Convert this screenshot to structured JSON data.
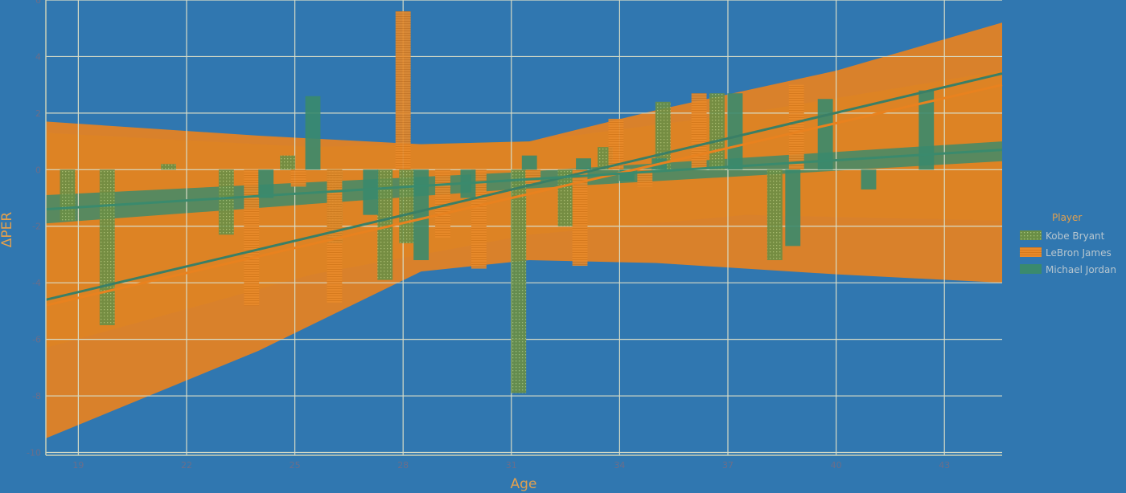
{
  "chart_data": {
    "type": "bar",
    "xlabel": "Age",
    "ylabel": "ΔPER",
    "xlim": [
      18.1,
      44.6
    ],
    "ylim": [
      -10.1,
      6
    ],
    "x_ticks": [
      19,
      22,
      25,
      28,
      31,
      34,
      37,
      40,
      43
    ],
    "y_ticks": [
      6,
      4,
      2,
      0,
      -2,
      -4,
      -6,
      -8,
      -10
    ],
    "grid": true,
    "legend": {
      "title": "Player",
      "placement": "right"
    },
    "series": [
      {
        "name": "Kobe Bryant",
        "color": "#6a8e45",
        "bars": [
          {
            "x": 18.7,
            "y": -1.8
          },
          {
            "x": 19.8,
            "y": -5.5
          },
          {
            "x": 21.5,
            "y": 0.2
          },
          {
            "x": 23.1,
            "y": -2.3
          },
          {
            "x": 24.8,
            "y": 0.5
          },
          {
            "x": 26.1,
            "y": -2.6
          },
          {
            "x": 27.5,
            "y": -3.9
          },
          {
            "x": 28.1,
            "y": -2.6
          },
          {
            "x": 31.2,
            "y": -7.9
          },
          {
            "x": 32.5,
            "y": -2.0
          },
          {
            "x": 33.6,
            "y": 0.8
          },
          {
            "x": 35.2,
            "y": 2.4
          },
          {
            "x": 36.7,
            "y": 2.7
          },
          {
            "x": 38.3,
            "y": -3.2
          }
        ],
        "trend": [
          {
            "x": 18.1,
            "y": -4.6
          },
          {
            "x": 44.6,
            "y": 3.4
          }
        ],
        "band": {
          "upper": [
            {
              "x": 18.1,
              "y": 1.3
            },
            {
              "x": 25.5,
              "y": 0.8
            },
            {
              "x": 31.5,
              "y": 1.0
            },
            {
              "x": 37.5,
              "y": 2.0
            },
            {
              "x": 44.6,
              "y": 3.5
            }
          ],
          "lower": [
            {
              "x": 18.1,
              "y": -6.3
            },
            {
              "x": 25.5,
              "y": -3.7
            },
            {
              "x": 31.5,
              "y": -2.3
            },
            {
              "x": 37.5,
              "y": -1.6
            },
            {
              "x": 44.6,
              "y": -1.8
            }
          ]
        }
      },
      {
        "name": "LeBron James",
        "color": "#e8821f",
        "bars": [
          {
            "x": 23.8,
            "y": -4.8
          },
          {
            "x": 25.1,
            "y": -0.6
          },
          {
            "x": 26.1,
            "y": -4.7
          },
          {
            "x": 28.0,
            "y": 5.6
          },
          {
            "x": 29.1,
            "y": -2.4
          },
          {
            "x": 30.1,
            "y": -3.5
          },
          {
            "x": 31.6,
            "y": -0.5
          },
          {
            "x": 32.9,
            "y": -3.4
          },
          {
            "x": 33.9,
            "y": 1.8
          },
          {
            "x": 34.7,
            "y": -0.6
          },
          {
            "x": 36.2,
            "y": 2.7
          },
          {
            "x": 38.9,
            "y": 3.0
          }
        ],
        "trend": [
          {
            "x": 18.1,
            "y": -4.8
          },
          {
            "x": 44.6,
            "y": 3.0
          }
        ],
        "band": {
          "upper": [
            {
              "x": 18.1,
              "y": 1.7
            },
            {
              "x": 24.0,
              "y": 1.2
            },
            {
              "x": 28.5,
              "y": 0.9
            },
            {
              "x": 31.5,
              "y": 1.0
            },
            {
              "x": 35.0,
              "y": 2.1
            },
            {
              "x": 40.0,
              "y": 3.5
            },
            {
              "x": 44.6,
              "y": 5.2
            }
          ],
          "lower": [
            {
              "x": 18.1,
              "y": -9.5
            },
            {
              "x": 24.0,
              "y": -6.4
            },
            {
              "x": 28.5,
              "y": -3.6
            },
            {
              "x": 31.5,
              "y": -3.2
            },
            {
              "x": 35.0,
              "y": -3.3
            },
            {
              "x": 40.0,
              "y": -3.7
            },
            {
              "x": 44.6,
              "y": -4.0
            }
          ]
        }
      },
      {
        "name": "Michael Jordan",
        "color": "#3a8a6d",
        "bars": [
          {
            "x": 24.2,
            "y": -1.0
          },
          {
            "x": 25.5,
            "y": 2.6
          },
          {
            "x": 27.1,
            "y": -1.6
          },
          {
            "x": 28.5,
            "y": -3.2
          },
          {
            "x": 29.8,
            "y": -1.0
          },
          {
            "x": 31.5,
            "y": 0.5
          },
          {
            "x": 33.0,
            "y": 0.4
          },
          {
            "x": 34.2,
            "y": -0.4
          },
          {
            "x": 35.1,
            "y": 0.4
          },
          {
            "x": 37.2,
            "y": 2.7
          },
          {
            "x": 38.8,
            "y": -2.7
          },
          {
            "x": 39.7,
            "y": 2.5
          },
          {
            "x": 40.9,
            "y": -0.7
          },
          {
            "x": 42.5,
            "y": 2.8
          }
        ],
        "trend": [
          {
            "x": 18.1,
            "y": -1.4
          },
          {
            "x": 44.6,
            "y": 0.7
          }
        ],
        "band": {
          "upper": [
            {
              "x": 18.1,
              "y": -0.9
            },
            {
              "x": 31.0,
              "y": -0.1
            },
            {
              "x": 44.6,
              "y": 1.0
            }
          ],
          "lower": [
            {
              "x": 18.1,
              "y": -1.9
            },
            {
              "x": 31.0,
              "y": -0.7
            },
            {
              "x": 44.6,
              "y": 0.3
            }
          ]
        }
      }
    ]
  }
}
